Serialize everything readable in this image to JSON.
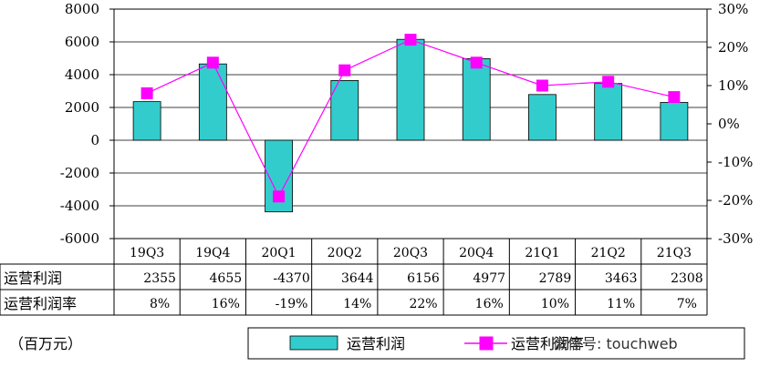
{
  "chart_data": {
    "type": "bar-line-combo",
    "categories": [
      "19Q3",
      "19Q4",
      "20Q1",
      "20Q2",
      "20Q3",
      "20Q4",
      "21Q1",
      "21Q2",
      "21Q3"
    ],
    "series": [
      {
        "name": "运营利润",
        "type": "bar",
        "axis": "left",
        "color": "#33CCCC",
        "values": [
          2355,
          4655,
          -4370,
          3644,
          6156,
          4977,
          2789,
          3463,
          2308
        ],
        "labels": [
          "2355",
          "4655",
          "-4370",
          "3644",
          "6156",
          "4977",
          "2789",
          "3463",
          "2308"
        ]
      },
      {
        "name": "运营利润率",
        "type": "line",
        "axis": "right",
        "color": "#FF00FF",
        "values": [
          8,
          16,
          -19,
          14,
          22,
          16,
          10,
          11,
          7
        ],
        "labels": [
          "8%",
          "16%",
          "-19%",
          "14%",
          "22%",
          "16%",
          "10%",
          "11%",
          "7%"
        ]
      }
    ],
    "y_left": {
      "min": -6000,
      "max": 8000,
      "step": 2000,
      "ticks": [
        "8000",
        "6000",
        "4000",
        "2000",
        "0",
        "-2000",
        "-4000",
        "-6000"
      ]
    },
    "y_right": {
      "min": -30,
      "max": 30,
      "step": 10,
      "ticks": [
        "30%",
        "20%",
        "10%",
        "0%",
        "-10%",
        "-20%",
        "-30%"
      ]
    },
    "grid": true,
    "legend_position": "bottom",
    "unit_note": "（百万元）",
    "table_rows": [
      "运营利润",
      "运营利润率"
    ]
  },
  "legend": {
    "bar_label": "运营利润",
    "line_label": "运营利润率"
  },
  "watermark": "微信号: touchweb"
}
